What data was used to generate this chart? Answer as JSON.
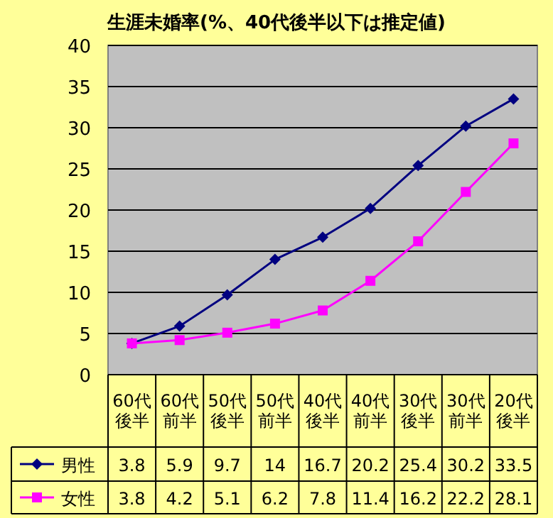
{
  "chart_data": {
    "type": "line",
    "title": "生涯未婚率(%、40代後半以下は推定値)",
    "categories": [
      "60代後半",
      "60代前半",
      "50代後半",
      "50代前半",
      "40代後半",
      "40代前半",
      "30代後半",
      "30代前半",
      "20代後半"
    ],
    "series": [
      {
        "name": "男性",
        "color": "#000080",
        "marker": "diamond",
        "values": [
          3.8,
          5.9,
          9.7,
          14,
          16.7,
          20.2,
          25.4,
          30.2,
          33.5
        ]
      },
      {
        "name": "女性",
        "color": "#ff00ff",
        "marker": "square",
        "values": [
          3.8,
          4.2,
          5.1,
          6.2,
          7.8,
          11.4,
          16.2,
          22.2,
          28.1
        ]
      }
    ],
    "ylim": [
      0,
      40
    ],
    "yticks": [
      0,
      5,
      10,
      15,
      20,
      25,
      30,
      35,
      40
    ],
    "grid": "y",
    "data_labels": true,
    "legend": "bottom left"
  }
}
